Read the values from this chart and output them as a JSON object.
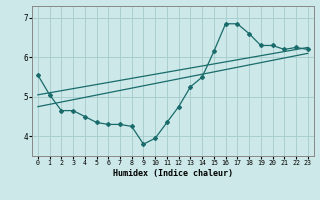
{
  "xlabel": "Humidex (Indice chaleur)",
  "background_color": "#cce8e8",
  "grid_color": "#aacfcf",
  "line_color": "#1a6b6b",
  "xlim": [
    -0.5,
    23.5
  ],
  "ylim": [
    3.5,
    7.3
  ],
  "yticks": [
    4,
    5,
    6,
    7
  ],
  "xticks": [
    0,
    1,
    2,
    3,
    4,
    5,
    6,
    7,
    8,
    9,
    10,
    11,
    12,
    13,
    14,
    15,
    16,
    17,
    18,
    19,
    20,
    21,
    22,
    23
  ],
  "data_line": {
    "x": [
      0,
      1,
      2,
      3,
      4,
      5,
      6,
      7,
      8,
      9,
      10,
      11,
      12,
      13,
      14,
      15,
      16,
      17,
      18,
      19,
      20,
      21,
      22,
      23
    ],
    "y": [
      5.55,
      5.05,
      4.65,
      4.65,
      4.5,
      4.35,
      4.3,
      4.3,
      4.25,
      3.8,
      3.95,
      4.35,
      4.75,
      5.25,
      5.5,
      6.15,
      6.85,
      6.85,
      6.6,
      6.3,
      6.3,
      6.2,
      6.25,
      6.2
    ]
  },
  "trend_line1": {
    "x": [
      0,
      23
    ],
    "y": [
      5.05,
      6.25
    ]
  },
  "trend_line2": {
    "x": [
      0,
      23
    ],
    "y": [
      4.75,
      6.1
    ]
  }
}
